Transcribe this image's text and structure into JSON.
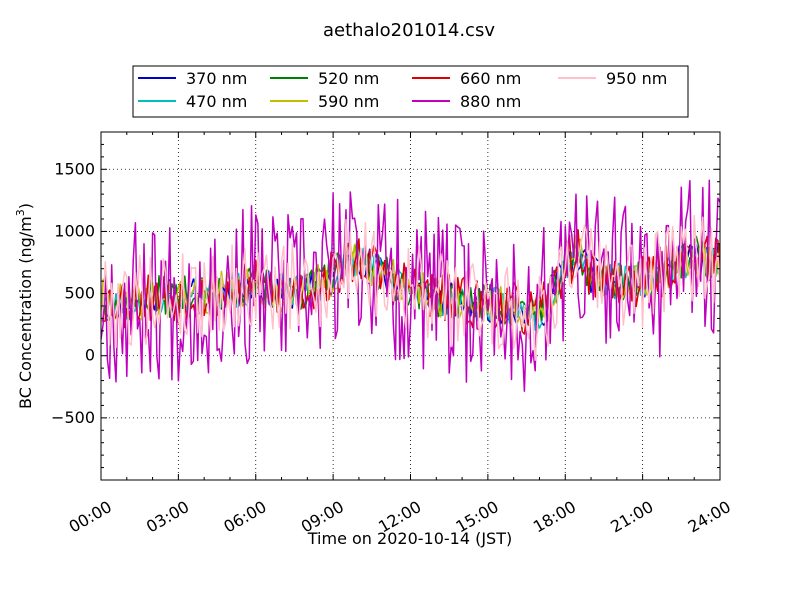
{
  "chart_data": {
    "type": "line",
    "title": "aethalo201014.csv",
    "xlabel": "Time on 2020-10-14 (JST)",
    "ylabel_main": "BC Concentration (ng/m",
    "ylabel_sup": "3",
    "ylabel_end": ")",
    "xlim_hours": [
      0,
      24
    ],
    "ylim": [
      -1000,
      1800
    ],
    "x_ticks": [
      {
        "hour": 0,
        "label": "00:00"
      },
      {
        "hour": 3,
        "label": "03:00"
      },
      {
        "hour": 6,
        "label": "06:00"
      },
      {
        "hour": 9,
        "label": "09:00"
      },
      {
        "hour": 12,
        "label": "12:00"
      },
      {
        "hour": 15,
        "label": "15:00"
      },
      {
        "hour": 18,
        "label": "18:00"
      },
      {
        "hour": 21,
        "label": "21:00"
      },
      {
        "hour": 24,
        "label": "24:00"
      }
    ],
    "y_ticks": [
      {
        "value": -500,
        "label": "−500"
      },
      {
        "value": 0,
        "label": "0"
      },
      {
        "value": 500,
        "label": "500"
      },
      {
        "value": 1000,
        "label": "1000"
      },
      {
        "value": 1500,
        "label": "1500"
      }
    ],
    "grid": true,
    "legend_position": "top-center",
    "series": [
      {
        "name": "370 nm",
        "color": "#0000cc",
        "amp": 0.35,
        "seed": 11
      },
      {
        "name": "470 nm",
        "color": "#00bfbf",
        "amp": 0.35,
        "seed": 23
      },
      {
        "name": "520 nm",
        "color": "#008000",
        "amp": 0.4,
        "seed": 37
      },
      {
        "name": "590 nm",
        "color": "#bfbf00",
        "amp": 0.4,
        "seed": 41
      },
      {
        "name": "660 nm",
        "color": "#dd0000",
        "amp": 0.5,
        "seed": 53
      },
      {
        "name": "880 nm",
        "color": "#bf00bf",
        "amp": 1.6,
        "seed": 67
      },
      {
        "name": "950 nm",
        "color": "#ffc0cb",
        "amp": 0.9,
        "seed": 79
      }
    ]
  }
}
